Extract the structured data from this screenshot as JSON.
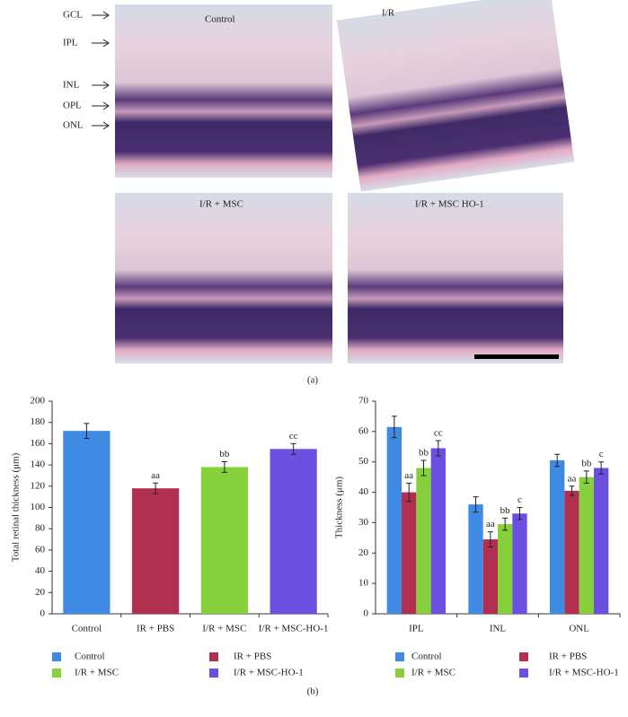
{
  "figure": {
    "panel_a": {
      "label": "(a)",
      "image_labels": [
        "Control",
        "I/R",
        "I/R + MSC",
        "I/R + MSC HO-1"
      ],
      "layer_labels": [
        "GCL",
        "IPL",
        "INL",
        "OPL",
        "ONL"
      ]
    },
    "panel_b_label": "(b)"
  },
  "chart_data": [
    {
      "type": "bar",
      "ylabel": "Total retinal thickness (μm)",
      "categories": [
        "Control",
        "IR + PBS",
        "I/R + MSC",
        "I/R + MSC-HO-1"
      ],
      "values": [
        172,
        118,
        138,
        155
      ],
      "errors": [
        7,
        5,
        5,
        5
      ],
      "annotations": [
        null,
        "aa",
        "bb",
        "cc"
      ],
      "colors": [
        "#3f8ae2",
        "#b2304f",
        "#86d03c",
        "#6a4fe0"
      ],
      "ylim": [
        0,
        200
      ],
      "yticks": [
        0,
        20,
        40,
        60,
        80,
        100,
        120,
        140,
        160,
        180,
        200
      ],
      "legend": "bottom"
    },
    {
      "type": "grouped_bar",
      "ylabel": "Thickness (μm)",
      "categories": [
        "IPL",
        "INL",
        "ONL"
      ],
      "series": [
        {
          "name": "Control",
          "color": "#3f8ae2",
          "values": [
            61.5,
            36,
            50.5
          ],
          "errors": [
            3.5,
            2.5,
            2
          ],
          "annotations": [
            null,
            null,
            null
          ]
        },
        {
          "name": "IR + PBS",
          "color": "#b2304f",
          "values": [
            40,
            24.5,
            40.5
          ],
          "errors": [
            3,
            2.5,
            1.5
          ],
          "annotations": [
            "aa",
            "aa",
            "aa"
          ]
        },
        {
          "name": "I/R + MSC",
          "color": "#86d03c",
          "values": [
            48,
            29.5,
            45
          ],
          "errors": [
            2.5,
            2,
            2
          ],
          "annotations": [
            "bb",
            "bb",
            "bb"
          ]
        },
        {
          "name": "I/R + MSC-HO-1",
          "color": "#6a4fe0",
          "values": [
            54.5,
            33,
            48
          ],
          "errors": [
            2.5,
            2,
            2
          ],
          "annotations": [
            "cc",
            "c",
            "c"
          ]
        }
      ],
      "ylim": [
        0,
        70
      ],
      "yticks": [
        0,
        10,
        20,
        30,
        40,
        50,
        60,
        70
      ],
      "legend": "bottom"
    }
  ]
}
